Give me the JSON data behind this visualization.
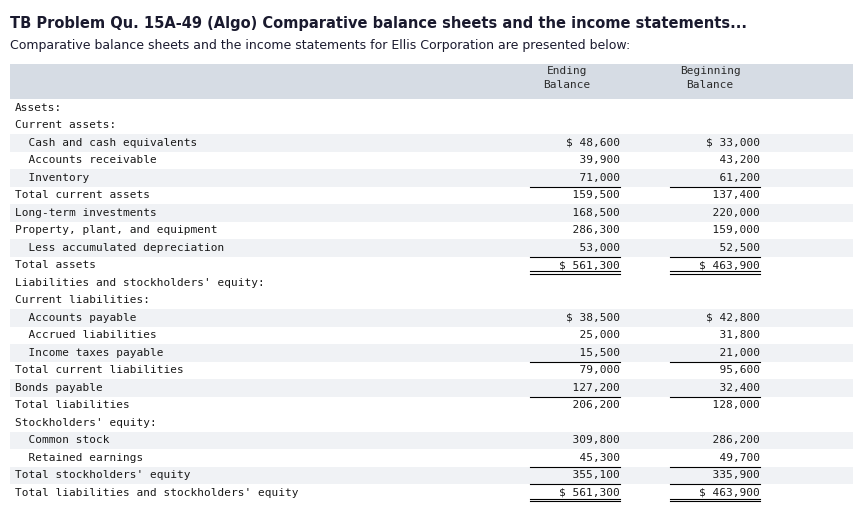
{
  "title": "TB Problem Qu. 15A-49 (Algo) Comparative balance sheets and the income statements...",
  "subtitle": "Comparative balance sheets and the income statements for Ellis Corporation are presented below:",
  "header_bg": "#d6dce4",
  "row_bg_alt": "#eef0f3",
  "bg_color": "#ffffff",
  "col_header": [
    "Ending\nBalance",
    "Beginning\nBalance"
  ],
  "rows": [
    {
      "label": "Assets:",
      "indent": 0,
      "ending": "",
      "beginning": "",
      "bold": false,
      "line_above": false,
      "line_below": false,
      "dollar_sign": false,
      "shade": false
    },
    {
      "label": "Current assets:",
      "indent": 0,
      "ending": "",
      "beginning": "",
      "bold": false,
      "line_above": false,
      "line_below": false,
      "dollar_sign": false,
      "shade": false
    },
    {
      "label": "  Cash and cash equivalents",
      "indent": 0,
      "ending": "48,600",
      "beginning": "33,000",
      "bold": false,
      "line_above": false,
      "line_below": false,
      "dollar_sign": true,
      "shade": true
    },
    {
      "label": "  Accounts receivable",
      "indent": 0,
      "ending": "39,900",
      "beginning": "43,200",
      "bold": false,
      "line_above": false,
      "line_below": false,
      "dollar_sign": false,
      "shade": false
    },
    {
      "label": "  Inventory",
      "indent": 0,
      "ending": "71,000",
      "beginning": "61,200",
      "bold": false,
      "line_above": false,
      "line_below": false,
      "dollar_sign": false,
      "shade": true
    },
    {
      "label": "Total current assets",
      "indent": 0,
      "ending": "159,500",
      "beginning": "137,400",
      "bold": false,
      "line_above": true,
      "line_below": false,
      "dollar_sign": false,
      "shade": false
    },
    {
      "label": "Long-term investments",
      "indent": 0,
      "ending": "168,500",
      "beginning": "220,000",
      "bold": false,
      "line_above": false,
      "line_below": false,
      "dollar_sign": false,
      "shade": true
    },
    {
      "label": "Property, plant, and equipment",
      "indent": 0,
      "ending": "286,300",
      "beginning": "159,000",
      "bold": false,
      "line_above": false,
      "line_below": false,
      "dollar_sign": false,
      "shade": false
    },
    {
      "label": "  Less accumulated depreciation",
      "indent": 0,
      "ending": "53,000",
      "beginning": "52,500",
      "bold": false,
      "line_above": false,
      "line_below": false,
      "dollar_sign": false,
      "shade": true
    },
    {
      "label": "Total assets",
      "indent": 0,
      "ending": "561,300",
      "beginning": "463,900",
      "bold": false,
      "line_above": true,
      "line_below": true,
      "dollar_sign": true,
      "shade": false
    },
    {
      "label": "Liabilities and stockholders' equity:",
      "indent": 0,
      "ending": "",
      "beginning": "",
      "bold": false,
      "line_above": false,
      "line_below": false,
      "dollar_sign": false,
      "shade": false
    },
    {
      "label": "Current liabilities:",
      "indent": 0,
      "ending": "",
      "beginning": "",
      "bold": false,
      "line_above": false,
      "line_below": false,
      "dollar_sign": false,
      "shade": false
    },
    {
      "label": "  Accounts payable",
      "indent": 0,
      "ending": "38,500",
      "beginning": "42,800",
      "bold": false,
      "line_above": false,
      "line_below": false,
      "dollar_sign": true,
      "shade": true
    },
    {
      "label": "  Accrued liabilities",
      "indent": 0,
      "ending": "25,000",
      "beginning": "31,800",
      "bold": false,
      "line_above": false,
      "line_below": false,
      "dollar_sign": false,
      "shade": false
    },
    {
      "label": "  Income taxes payable",
      "indent": 0,
      "ending": "15,500",
      "beginning": "21,000",
      "bold": false,
      "line_above": false,
      "line_below": false,
      "dollar_sign": false,
      "shade": true
    },
    {
      "label": "Total current liabilities",
      "indent": 0,
      "ending": "79,000",
      "beginning": "95,600",
      "bold": false,
      "line_above": true,
      "line_below": false,
      "dollar_sign": false,
      "shade": false
    },
    {
      "label": "Bonds payable",
      "indent": 0,
      "ending": "127,200",
      "beginning": "32,400",
      "bold": false,
      "line_above": false,
      "line_below": false,
      "dollar_sign": false,
      "shade": true
    },
    {
      "label": "Total liabilities",
      "indent": 0,
      "ending": "206,200",
      "beginning": "128,000",
      "bold": false,
      "line_above": true,
      "line_below": false,
      "dollar_sign": false,
      "shade": false
    },
    {
      "label": "Stockholders' equity:",
      "indent": 0,
      "ending": "",
      "beginning": "",
      "bold": false,
      "line_above": false,
      "line_below": false,
      "dollar_sign": false,
      "shade": false
    },
    {
      "label": "  Common stock",
      "indent": 0,
      "ending": "309,800",
      "beginning": "286,200",
      "bold": false,
      "line_above": false,
      "line_below": false,
      "dollar_sign": false,
      "shade": true
    },
    {
      "label": "  Retained earnings",
      "indent": 0,
      "ending": "45,300",
      "beginning": "49,700",
      "bold": false,
      "line_above": false,
      "line_below": false,
      "dollar_sign": false,
      "shade": false
    },
    {
      "label": "Total stockholders' equity",
      "indent": 0,
      "ending": "355,100",
      "beginning": "335,900",
      "bold": false,
      "line_above": true,
      "line_below": false,
      "dollar_sign": false,
      "shade": true
    },
    {
      "label": "Total liabilities and stockholders' equity",
      "indent": 0,
      "ending": "561,300",
      "beginning": "463,900",
      "bold": false,
      "line_above": true,
      "line_below": true,
      "dollar_sign": true,
      "shade": false
    }
  ],
  "font_family": "monospace",
  "title_fontsize": 10.5,
  "subtitle_fontsize": 9.0,
  "table_fontsize": 8.0,
  "header_fontsize": 8.0
}
